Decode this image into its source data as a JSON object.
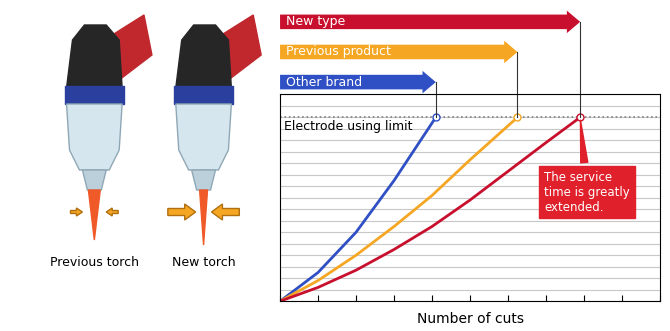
{
  "chart_data": {
    "type": "line",
    "xlabel": "Number of cuts",
    "xlim": [
      0,
      10
    ],
    "xticks": [
      0,
      1,
      2,
      3,
      4,
      5,
      6,
      7,
      8,
      9,
      10
    ],
    "ylim": [
      0,
      18
    ],
    "yticks": [
      0,
      1,
      2,
      3,
      4,
      5,
      6,
      7,
      8,
      9,
      10,
      11,
      12,
      13,
      14,
      15,
      16,
      17,
      18
    ],
    "grid": true,
    "tick_labels": false,
    "series": [
      {
        "name": "Other brand",
        "color": "#2f4fc4",
        "x": [
          0,
          1,
          2,
          3,
          4.1
        ],
        "values": [
          0,
          2.5,
          6,
          10.5,
          16
        ]
      },
      {
        "name": "Previous product",
        "color": "#f5a623",
        "x": [
          0,
          1,
          2,
          3,
          4,
          5,
          6.25
        ],
        "values": [
          0,
          1.8,
          4,
          6.5,
          9.2,
          12.3,
          16
        ]
      },
      {
        "name": "New type",
        "color": "#c8102e",
        "x": [
          0,
          1,
          2,
          3,
          4,
          5,
          6,
          7,
          7.9
        ],
        "values": [
          0,
          1.2,
          2.7,
          4.5,
          6.5,
          8.8,
          11.3,
          13.8,
          16
        ]
      }
    ],
    "limit": {
      "value": 16,
      "label": "Electrode using limit"
    },
    "annotation": {
      "text": "The service time is greatly extended.",
      "series": "New type"
    }
  },
  "illustrations": {
    "captions": [
      "Previous torch",
      "New torch"
    ]
  }
}
